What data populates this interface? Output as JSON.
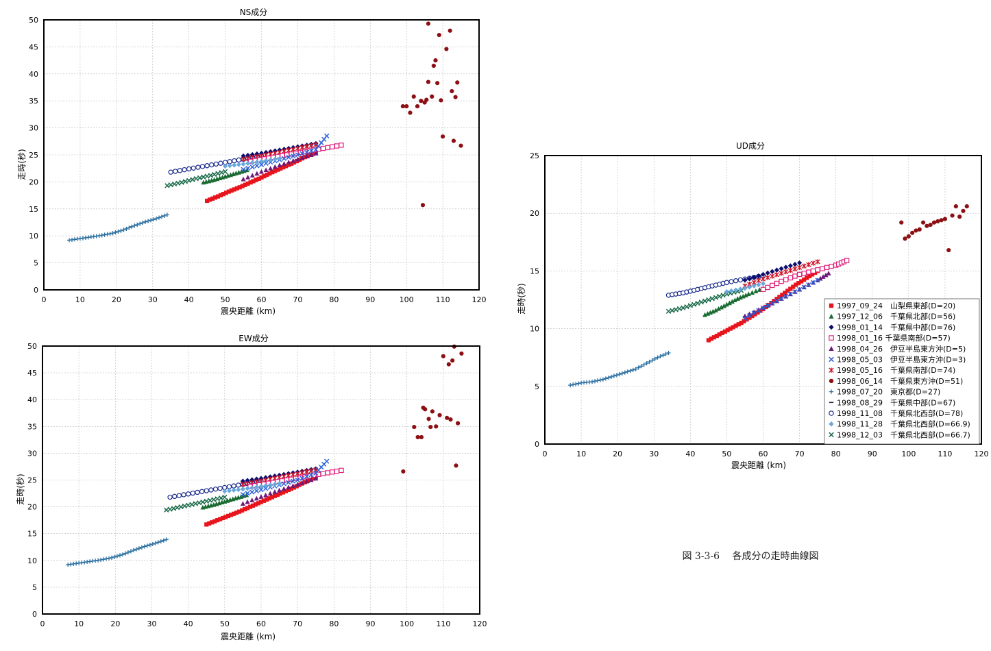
{
  "figure": {
    "caption": "図 3-3-6　 各成分の走時曲線図",
    "xlabel": "震央距離",
    "xunit": "(km)",
    "ylabel": "走時(秒)"
  },
  "series_meta": [
    {
      "key": "s1",
      "name": "1997_09_24　山梨県東部(D=20)",
      "color": "#e8141c",
      "marker": "square"
    },
    {
      "key": "s2",
      "name": "1997_12_06　千葉県北部(D=56)",
      "color": "#1a6b32",
      "marker": "triangle"
    },
    {
      "key": "s3",
      "name": "1998_01_14　千葉県中部(D=76)",
      "color": "#0d0d6e",
      "marker": "diamond"
    },
    {
      "key": "s4",
      "name": "1998_01_16 千葉県南部(D=57)",
      "color": "#e0207a",
      "marker": "square-open"
    },
    {
      "key": "s5",
      "name": "1998_04_26　伊豆半島東方沖(D=5)",
      "color": "#6d1a78",
      "marker": "triangle"
    },
    {
      "key": "s6",
      "name": "1998_05_03　伊豆半島東方沖(D=3)",
      "color": "#2a60d8",
      "marker": "x"
    },
    {
      "key": "s7",
      "name": "1998_05_16　千葉県南部(D=74)",
      "color": "#d0162a",
      "marker": "star"
    },
    {
      "key": "s8",
      "name": "1998_06_14　千葉県東方沖(D=51)",
      "color": "#8c0f14",
      "marker": "circle"
    },
    {
      "key": "s9",
      "name": "1998_07_20　東京都(D=27)",
      "color": "#2a6fa0",
      "marker": "plus"
    },
    {
      "key": "s10",
      "name": "1998_08_29　千葉県中部(D=67)",
      "color": "#1a2a4a",
      "marker": "dash"
    },
    {
      "key": "s11",
      "name": "1998_11_08　千葉県北西部(D=78)",
      "color": "#1a2a8a",
      "marker": "circle-open"
    },
    {
      "key": "s12",
      "name": "1998_11_28　千葉県北西部(D=66.9)",
      "color": "#6aa8dc",
      "marker": "diamond"
    },
    {
      "key": "s13",
      "name": "1998_12_03　千葉県北西部(D=66.7)",
      "color": "#1a6b4a",
      "marker": "x"
    }
  ],
  "chart_data": [
    {
      "type": "scatter",
      "title": "NS成分",
      "xlabel": "震央距離 (km)",
      "ylabel": "走時(秒)",
      "xlim": [
        0,
        120
      ],
      "ylim": [
        0,
        50
      ],
      "xticks": [
        0,
        10,
        20,
        30,
        40,
        50,
        60,
        70,
        80,
        90,
        100,
        110,
        120
      ],
      "yticks": [
        0,
        5,
        10,
        15,
        20,
        25,
        30,
        35,
        40,
        45,
        50
      ],
      "grid": true,
      "legend": "none",
      "series": [
        {
          "key": "s9",
          "x": [
            7,
            10,
            13,
            16,
            19,
            22,
            25,
            28,
            31,
            34
          ],
          "y": [
            9.2,
            9.5,
            9.8,
            10.1,
            10.5,
            11.1,
            11.9,
            12.6,
            13.2,
            13.9
          ]
        },
        {
          "key": "s13",
          "x": [
            34,
            38,
            42,
            46,
            50
          ],
          "y": [
            19.3,
            19.9,
            20.6,
            21.2,
            21.9
          ]
        },
        {
          "key": "s2",
          "x": [
            44,
            47,
            50,
            53,
            56
          ],
          "y": [
            19.9,
            20.4,
            21.0,
            21.6,
            22.2
          ]
        },
        {
          "key": "s11",
          "x": [
            35,
            40,
            45,
            50,
            55,
            60
          ],
          "y": [
            21.8,
            22.4,
            23.0,
            23.6,
            24.2,
            24.8
          ]
        },
        {
          "key": "s3",
          "x": [
            55,
            60,
            65,
            70,
            75
          ],
          "y": [
            24.8,
            25.3,
            25.9,
            26.5,
            27.1
          ]
        },
        {
          "key": "s1",
          "x": [
            45,
            48,
            51,
            54,
            57,
            60,
            63,
            66,
            69,
            72,
            75
          ],
          "y": [
            16.5,
            17.3,
            18.2,
            19.0,
            19.9,
            20.8,
            21.8,
            22.7,
            23.6,
            24.6,
            25.4
          ]
        },
        {
          "key": "s7",
          "x": [
            55,
            60,
            65,
            70,
            75
          ],
          "y": [
            24.2,
            24.8,
            25.5,
            26.2,
            26.9
          ]
        },
        {
          "key": "s4",
          "x": [
            57,
            62,
            67,
            72,
            77,
            82
          ],
          "y": [
            23.8,
            24.4,
            25.0,
            25.6,
            26.2,
            26.8
          ]
        },
        {
          "key": "s5",
          "x": [
            55,
            60,
            65,
            70,
            75
          ],
          "y": [
            20.5,
            21.9,
            23.1,
            24.2,
            25.3
          ]
        },
        {
          "key": "s6",
          "x": [
            55,
            60,
            65,
            70,
            75,
            78
          ],
          "y": [
            22.3,
            23.2,
            24.1,
            25.0,
            26.0,
            28.5
          ]
        },
        {
          "key": "s12",
          "x": [
            50,
            55,
            60,
            65
          ],
          "y": [
            22.9,
            23.3,
            23.8,
            24.3
          ]
        },
        {
          "key": "s8",
          "x": [
            99,
            100,
            101,
            102,
            103,
            104,
            104.5,
            105,
            105.5,
            106,
            106,
            107,
            107.5,
            108,
            108.5,
            109,
            109.5,
            110,
            111,
            112,
            112.5,
            113,
            113.5,
            114,
            115
          ],
          "y": [
            34.0,
            34.0,
            32.8,
            35.8,
            34.0,
            35.0,
            15.7,
            34.7,
            35.2,
            38.5,
            49.3,
            35.8,
            41.5,
            42.5,
            38.3,
            47.2,
            35.1,
            28.4,
            44.6,
            48.0,
            36.8,
            27.6,
            35.7,
            38.4,
            26.7
          ]
        }
      ]
    },
    {
      "type": "scatter",
      "title": "EW成分",
      "xlabel": "震央距離 (km)",
      "ylabel": "走時(秒)",
      "xlim": [
        0,
        120
      ],
      "ylim": [
        0,
        50
      ],
      "xticks": [
        0,
        10,
        20,
        30,
        40,
        50,
        60,
        70,
        80,
        90,
        100,
        110,
        120
      ],
      "yticks": [
        0,
        5,
        10,
        15,
        20,
        25,
        30,
        35,
        40,
        45,
        50
      ],
      "grid": true,
      "legend": "none",
      "series": [
        {
          "key": "s9",
          "x": [
            7,
            10,
            13,
            16,
            19,
            22,
            25,
            28,
            31,
            34
          ],
          "y": [
            9.2,
            9.5,
            9.8,
            10.1,
            10.5,
            11.1,
            11.9,
            12.6,
            13.2,
            13.9
          ]
        },
        {
          "key": "s13",
          "x": [
            34,
            38,
            42,
            46,
            50
          ],
          "y": [
            19.4,
            20.0,
            20.6,
            21.2,
            21.8
          ]
        },
        {
          "key": "s2",
          "x": [
            44,
            47,
            50,
            53,
            56
          ],
          "y": [
            19.9,
            20.4,
            21.0,
            21.6,
            22.2
          ]
        },
        {
          "key": "s11",
          "x": [
            35,
            40,
            45,
            50,
            55,
            60
          ],
          "y": [
            21.8,
            22.4,
            23.0,
            23.6,
            24.2,
            24.8
          ]
        },
        {
          "key": "s3",
          "x": [
            55,
            60,
            65,
            70,
            75
          ],
          "y": [
            24.8,
            25.3,
            25.9,
            26.5,
            27.1
          ]
        },
        {
          "key": "s1",
          "x": [
            45,
            48,
            51,
            54,
            57,
            60,
            63,
            66,
            69,
            72,
            75
          ],
          "y": [
            16.7,
            17.5,
            18.3,
            19.1,
            20.0,
            20.9,
            21.8,
            22.7,
            23.6,
            24.6,
            25.5
          ]
        },
        {
          "key": "s7",
          "x": [
            55,
            60,
            65,
            70,
            75
          ],
          "y": [
            24.2,
            24.8,
            25.5,
            26.2,
            26.9
          ]
        },
        {
          "key": "s4",
          "x": [
            57,
            62,
            67,
            72,
            77,
            82
          ],
          "y": [
            23.8,
            24.4,
            25.0,
            25.6,
            26.2,
            26.8
          ]
        },
        {
          "key": "s5",
          "x": [
            55,
            60,
            65,
            70,
            75
          ],
          "y": [
            20.6,
            21.9,
            23.1,
            24.2,
            25.3
          ]
        },
        {
          "key": "s6",
          "x": [
            55,
            60,
            65,
            70,
            75,
            78
          ],
          "y": [
            22.3,
            23.2,
            24.1,
            25.0,
            26.3,
            28.5
          ]
        },
        {
          "key": "s12",
          "x": [
            50,
            55,
            60,
            65
          ],
          "y": [
            22.9,
            23.3,
            23.8,
            24.3
          ]
        },
        {
          "key": "s8",
          "x": [
            99,
            102,
            103,
            104,
            104.5,
            105,
            106,
            106.5,
            107,
            108,
            109,
            110,
            111,
            111.5,
            112,
            112.5,
            113,
            113.5,
            114,
            115
          ],
          "y": [
            26.6,
            34.9,
            33.0,
            33.0,
            38.5,
            38.2,
            36.4,
            34.9,
            37.8,
            35.0,
            37.1,
            48.1,
            36.6,
            46.6,
            36.3,
            47.3,
            49.9,
            27.7,
            35.6,
            48.6
          ]
        }
      ]
    },
    {
      "type": "scatter",
      "title": "UD成分",
      "xlabel": "震央距離 (km)",
      "ylabel": "走時(秒)",
      "xlim": [
        0,
        120
      ],
      "ylim": [
        0,
        25
      ],
      "xticks": [
        0,
        10,
        20,
        30,
        40,
        50,
        60,
        70,
        80,
        90,
        100,
        110,
        120
      ],
      "yticks": [
        0,
        5,
        10,
        15,
        20,
        25
      ],
      "grid": true,
      "legend": "right",
      "series": [
        {
          "key": "s9",
          "x": [
            7,
            10,
            13,
            16,
            19,
            22,
            25,
            28,
            31,
            34
          ],
          "y": [
            5.1,
            5.3,
            5.4,
            5.6,
            5.9,
            6.2,
            6.5,
            7.0,
            7.5,
            7.9
          ]
        },
        {
          "key": "s13",
          "x": [
            34,
            38,
            42,
            46,
            50,
            54
          ],
          "y": [
            11.5,
            11.8,
            12.2,
            12.6,
            13.0,
            13.3
          ]
        },
        {
          "key": "s2",
          "x": [
            44,
            47,
            50,
            53,
            56,
            60
          ],
          "y": [
            11.2,
            11.6,
            12.1,
            12.6,
            13.0,
            13.5
          ]
        },
        {
          "key": "s11",
          "x": [
            34,
            38,
            42,
            46,
            50,
            55,
            60
          ],
          "y": [
            12.9,
            13.1,
            13.4,
            13.7,
            14.0,
            14.3,
            14.6
          ]
        },
        {
          "key": "s3",
          "x": [
            55,
            60,
            65,
            70
          ],
          "y": [
            14.2,
            14.7,
            15.2,
            15.7
          ]
        },
        {
          "key": "s1",
          "x": [
            45,
            48,
            51,
            54,
            57,
            60,
            63,
            66,
            69,
            72,
            75
          ],
          "y": [
            9.0,
            9.5,
            10.0,
            10.5,
            11.1,
            11.7,
            12.4,
            13.1,
            13.8,
            14.4,
            15.0
          ]
        },
        {
          "key": "s7",
          "x": [
            55,
            60,
            65,
            70,
            75
          ],
          "y": [
            13.7,
            14.3,
            14.8,
            15.3,
            15.8
          ]
        },
        {
          "key": "s4",
          "x": [
            60,
            65,
            70,
            75,
            80,
            83
          ],
          "y": [
            13.4,
            14.1,
            14.7,
            15.1,
            15.5,
            15.9
          ]
        },
        {
          "key": "s5",
          "x": [
            55,
            60,
            65,
            70,
            75,
            78
          ],
          "y": [
            11.1,
            11.8,
            12.6,
            13.4,
            14.2,
            14.8
          ]
        },
        {
          "key": "s6",
          "x": [
            55,
            60,
            65,
            70,
            75
          ],
          "y": [
            10.9,
            11.8,
            12.6,
            13.4,
            14.2
          ]
        },
        {
          "key": "s12",
          "x": [
            50,
            55,
            60
          ],
          "y": [
            13.2,
            13.5,
            13.9
          ]
        },
        {
          "key": "s8",
          "x": [
            98,
            99,
            100,
            101,
            102,
            103,
            104,
            105,
            106,
            107,
            108,
            109,
            110,
            111,
            112,
            113,
            114,
            115,
            116
          ],
          "y": [
            19.2,
            17.8,
            18.0,
            18.3,
            18.5,
            18.6,
            19.2,
            18.9,
            19.0,
            19.2,
            19.3,
            19.4,
            19.5,
            16.8,
            19.8,
            20.6,
            19.7,
            20.2,
            20.6
          ]
        }
      ]
    }
  ]
}
